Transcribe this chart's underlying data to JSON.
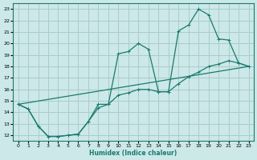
{
  "xlabel": "Humidex (Indice chaleur)",
  "xlim": [
    -0.5,
    23.5
  ],
  "ylim": [
    11.5,
    23.5
  ],
  "xticks": [
    0,
    1,
    2,
    3,
    4,
    5,
    6,
    7,
    8,
    9,
    10,
    11,
    12,
    13,
    14,
    15,
    16,
    17,
    18,
    19,
    20,
    21,
    22,
    23
  ],
  "yticks": [
    12,
    13,
    14,
    15,
    16,
    17,
    18,
    19,
    20,
    21,
    22,
    23
  ],
  "line_color": "#1a7a6e",
  "bg_color": "#cce8e8",
  "grid_color": "#aacccc",
  "line1_x": [
    0,
    1,
    2,
    3,
    4,
    5,
    6,
    7,
    8,
    9,
    10,
    11,
    12,
    13,
    14,
    15,
    16,
    17,
    18,
    19,
    20,
    21,
    22,
    23
  ],
  "line1_y": [
    14.7,
    14.3,
    12.8,
    11.9,
    11.9,
    12.0,
    12.1,
    13.2,
    14.7,
    14.7,
    19.1,
    19.3,
    20.0,
    19.5,
    15.8,
    15.8,
    21.1,
    21.6,
    23.0,
    22.5,
    20.4,
    20.3,
    18.3,
    18.0
  ],
  "line2_x": [
    0,
    1,
    2,
    3,
    4,
    5,
    6,
    7,
    8,
    9,
    10,
    11,
    12,
    13,
    14,
    15,
    16,
    17,
    18,
    19,
    20,
    21,
    22,
    23
  ],
  "line2_y": [
    14.7,
    14.3,
    12.8,
    11.9,
    11.9,
    12.0,
    12.1,
    13.2,
    14.4,
    14.7,
    15.5,
    15.7,
    16.0,
    16.0,
    15.8,
    15.8,
    16.5,
    17.1,
    17.5,
    18.0,
    18.2,
    18.5,
    18.3,
    18.0
  ],
  "line3_x": [
    0,
    23
  ],
  "line3_y": [
    14.7,
    18.0
  ]
}
